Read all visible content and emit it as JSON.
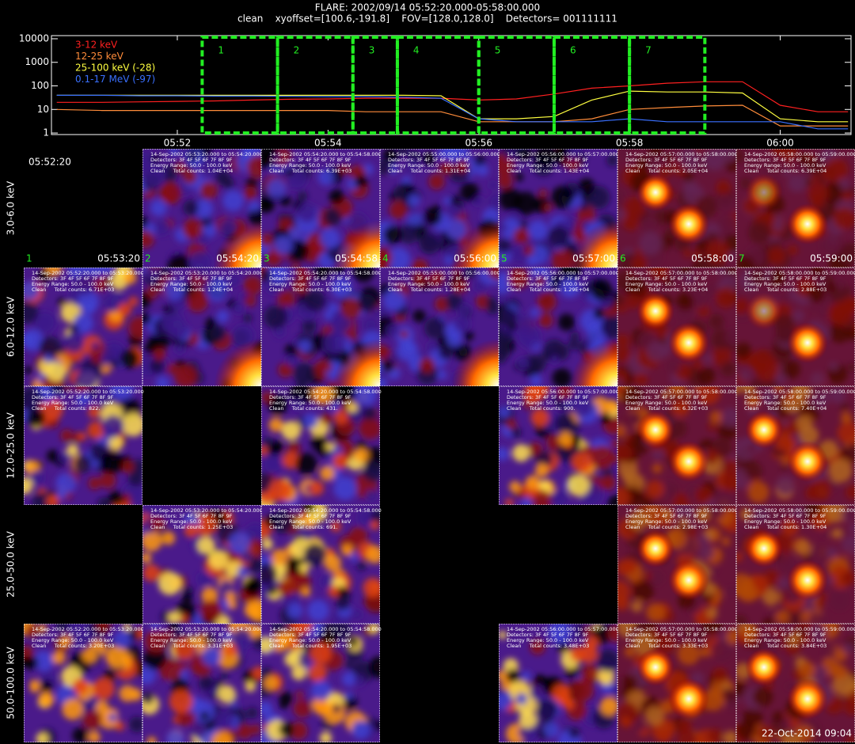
{
  "header": {
    "title": "FLARE: 2002/09/14 05:52:20.000-05:58:00.000",
    "subtitle": "clean    xyoffset=[100.6,-191.8]    FOV=[128.0,128.0]    Detectors= 001111111"
  },
  "chart_data": {
    "type": "line",
    "log_y": true,
    "xlim": [
      50.33,
      60.94
    ],
    "ylim": [
      0.86,
      13600
    ],
    "xticks": [
      {
        "value": 52,
        "label": "05:52"
      },
      {
        "value": 54,
        "label": "05:54"
      },
      {
        "value": 56,
        "label": "05:56"
      },
      {
        "value": 58,
        "label": "05:58"
      },
      {
        "value": 60,
        "label": "06:00"
      }
    ],
    "yticks": [
      1,
      10,
      100,
      1000,
      10000
    ],
    "x": [
      50.4,
      51,
      51.5,
      52,
      52.5,
      53,
      53.5,
      54,
      54.5,
      55,
      55.5,
      56,
      56.5,
      57,
      57.5,
      58,
      58.5,
      59,
      59.5,
      60,
      60.5,
      60.9
    ],
    "series": [
      {
        "name": "3-12 keV",
        "color": "#ff2020",
        "values": [
          20,
          20,
          21,
          22,
          23,
          25,
          27,
          28,
          30,
          30,
          30,
          25,
          28,
          45,
          80,
          100,
          130,
          150,
          150,
          15,
          8,
          8
        ]
      },
      {
        "name": "12-25 keV",
        "color": "#ff8c3a",
        "values": [
          10,
          9,
          9,
          9,
          9,
          9,
          9,
          9,
          8,
          8,
          8,
          3,
          3,
          3,
          4,
          10,
          12,
          14,
          15,
          2,
          2,
          2
        ]
      },
      {
        "name": "25-100 keV (-28)",
        "color": "#ffff40",
        "values": [
          40,
          40,
          40,
          40,
          40,
          40,
          40,
          40,
          40,
          40,
          38,
          4,
          4,
          5,
          25,
          60,
          55,
          55,
          50,
          4,
          3,
          3
        ]
      },
      {
        "name": "0.1-17 MeV (-97)",
        "color": "#3a70ff",
        "values": [
          40,
          40,
          38,
          38,
          37,
          37,
          36,
          35,
          35,
          33,
          30,
          4,
          3,
          3,
          3,
          4,
          3,
          3,
          3,
          3,
          1.5,
          1.5
        ]
      }
    ],
    "intervals": [
      {
        "label": "1",
        "start": 52.33,
        "end": 53.33
      },
      {
        "label": "2",
        "start": 53.33,
        "end": 54.33
      },
      {
        "label": "3",
        "start": 54.33,
        "end": 54.92
      },
      {
        "label": "4",
        "start": 54.92,
        "end": 56
      },
      {
        "label": "5",
        "start": 56,
        "end": 57
      },
      {
        "label": "6",
        "start": 57,
        "end": 58
      },
      {
        "label": "7",
        "start": 58,
        "end": 59
      }
    ]
  },
  "start_time": "05:52:20",
  "columns": [
    {
      "number": "1",
      "end": "05:53:20"
    },
    {
      "number": "2",
      "end": "05:54:20"
    },
    {
      "number": "3",
      "end": "05:54:58"
    },
    {
      "number": "4",
      "end": "05:56:00"
    },
    {
      "number": "5",
      "end": "05:57:00"
    },
    {
      "number": "6",
      "end": "05:58:00"
    },
    {
      "number": "7",
      "end": "05:59:00"
    }
  ],
  "rows": [
    {
      "label": "3.0-6.0 keV",
      "cells": [
        null,
        {
          "time": "14-Sep-2002 05:53:20.000 to 05:54:20.000",
          "detectors": "Detectors: 3F 4F 5F 6F 7F 8F 9F",
          "energy": "Energy Range: 50.0 - 100.0 keV",
          "counts": "Clean     Total counts: 1.04E+04"
        },
        {
          "time": "14-Sep-2002 05:54:20.000 to 05:54:58.000",
          "detectors": "Detectors: 3F 4F 5F 6F 7F 8F 9F",
          "energy": "Energy Range: 50.0 - 100.0 keV",
          "counts": "Clean     Total counts: 6.39E+03"
        },
        {
          "time": "14-Sep-2002 05:55:00.000 to 05:56:00.000",
          "detectors": "Detectors: 3F 4F 5F 6F 7F 8F 9F",
          "energy": "Energy Range: 50.0 - 100.0 keV",
          "counts": "Clean     Total counts: 1.31E+04"
        },
        {
          "time": "14-Sep-2002 05:56:00.000 to 05:57:00.000",
          "detectors": "Detectors: 3F 4F 5F 6F 7F 8F 9F",
          "energy": "Energy Range: 50.0 - 100.0 keV",
          "counts": "Clean     Total counts: 1.43E+04"
        },
        {
          "time": "14-Sep-2002 05:57:00.000 to 05:58:00.000",
          "detectors": "Detectors: 3F 4F 5F 6F 7F 8F 9F",
          "energy": "Energy Range: 50.0 - 100.0 keV",
          "counts": "Clean     Total counts: 2.05E+04"
        },
        {
          "time": "14-Sep-2002 05:58:00.000 to 05:59:00.000",
          "detectors": "Detectors: 3F 4F 5F 6F 7F 8F 9F",
          "energy": "Energy Range: 50.0 - 100.0 keV",
          "counts": "Clean     Total counts: 6.39E+04"
        }
      ]
    },
    {
      "label": "6.0-12.0 keV",
      "cells": [
        {
          "time": "14-Sep-2002 05:52:20.000 to 05:53:20.000",
          "detectors": "Detectors: 3F 4F 5F 6F 7F 8F 9F",
          "energy": "Energy Range: 50.0 - 100.0 keV",
          "counts": "Clean     Total counts: 6.71E+03"
        },
        {
          "time": "14-Sep-2002 05:53:20.000 to 05:54:20.000",
          "detectors": "Detectors: 3F 4F 5F 6F 7F 8F 9F",
          "energy": "Energy Range: 50.0 - 100.0 keV",
          "counts": "Clean     Total counts: 1.24E+04"
        },
        {
          "time": "14-Sep-2002 05:54:20.000 to 05:54:58.000",
          "detectors": "Detectors: 3F 4F 5F 6F 7F 8F 9F",
          "energy": "Energy Range: 50.0 - 100.0 keV",
          "counts": "Clean     Total counts: 6.30E+03"
        },
        {
          "time": "14-Sep-2002 05:55:00.000 to 05:56:00.000",
          "detectors": "Detectors: 3F 4F 5F 6F 7F 8F 9F",
          "energy": "Energy Range: 50.0 - 100.0 keV",
          "counts": "Clean     Total counts: 1.28E+04"
        },
        {
          "time": "14-Sep-2002 05:56:00.000 to 05:57:00.000",
          "detectors": "Detectors: 3F 4F 5F 6F 7F 8F 9F",
          "energy": "Energy Range: 50.0 - 100.0 keV",
          "counts": "Clean     Total counts: 1.29E+04"
        },
        {
          "time": "14-Sep-2002 05:57:00.000 to 05:58:00.000",
          "detectors": "Detectors: 3F 4F 5F 6F 7F 8F 9F",
          "energy": "Energy Range: 50.0 - 100.0 keV",
          "counts": "Clean     Total counts: 3.23E+04"
        },
        {
          "time": "14-Sep-2002 05:58:00.000 to 05:59:00.000",
          "detectors": "Detectors: 3F 4F 5F 6F 7F 8F 9F",
          "energy": "Energy Range: 50.0 - 100.0 keV",
          "counts": "Clean     Total counts: 2.88E+03"
        }
      ]
    },
    {
      "label": "12.0-25.0 keV",
      "cells": [
        {
          "time": "14-Sep-2002 05:52:20.000 to 05:53:20.000",
          "detectors": "Detectors: 3F 4F 5F 6F 7F 8F 9F",
          "energy": "Energy Range: 50.0 - 100.0 keV",
          "counts": "Clean     Total counts: 822."
        },
        null,
        {
          "time": "14-Sep-2002 05:54:20.000 to 05:54:58.000",
          "detectors": "Detectors: 3F 4F 5F 6F 7F 8F 9F",
          "energy": "Energy Range: 50.0 - 100.0 keV",
          "counts": "Clean     Total counts: 431."
        },
        null,
        {
          "time": "14-Sep-2002 05:56:00.000 to 05:57:00.000",
          "detectors": "Detectors: 3F 4F 5F 6F 7F 8F 9F",
          "energy": "Energy Range: 50.0 - 100.0 keV",
          "counts": "Clean     Total counts: 900."
        },
        {
          "time": "14-Sep-2002 05:57:00.000 to 05:58:00.000",
          "detectors": "Detectors: 3F 4F 5F 6F 7F 8F 9F",
          "energy": "Energy Range: 50.0 - 100.0 keV",
          "counts": "Clean     Total counts: 6.32E+03"
        },
        {
          "time": "14-Sep-2002 05:58:00.000 to 05:59:00.000",
          "detectors": "Detectors: 3F 4F 5F 6F 7F 8F 9F",
          "energy": "Energy Range: 50.0 - 100.0 keV",
          "counts": "Clean     Total counts: 7.40E+04"
        }
      ]
    },
    {
      "label": "25.0-50.0 keV",
      "cells": [
        null,
        {
          "time": "14-Sep-2002 05:53:20.000 to 05:54:20.000",
          "detectors": "Detectors: 3F 4F 5F 6F 7F 8F 9F",
          "energy": "Energy Range: 50.0 - 100.0 keV",
          "counts": "Clean     Total counts: 1.25E+03"
        },
        {
          "time": "14-Sep-2002 05:54:20.000 to 05:54:58.000",
          "detectors": "Detectors: 3F 4F 5F 6F 7F 8F 9F",
          "energy": "Energy Range: 50.0 - 100.0 keV",
          "counts": "Clean     Total counts: 691."
        },
        null,
        null,
        {
          "time": "14-Sep-2002 05:57:00.000 to 05:58:00.000",
          "detectors": "Detectors: 3F 4F 5F 6F 7F 8F 9F",
          "energy": "Energy Range: 50.0 - 100.0 keV",
          "counts": "Clean     Total counts: 2.98E+03"
        },
        {
          "time": "14-Sep-2002 05:58:00.000 to 05:59:00.000",
          "detectors": "Detectors: 3F 4F 5F 6F 7F 8F 9F",
          "energy": "Energy Range: 50.0 - 100.0 keV",
          "counts": "Clean     Total counts: 1.30E+04"
        }
      ]
    },
    {
      "label": "50.0-100.0 keV",
      "cells": [
        {
          "time": "14-Sep-2002 05:52:20.000 to 05:53:20.000",
          "detectors": "Detectors: 3F 4F 5F 6F 7F 8F 9F",
          "energy": "Energy Range: 50.0 - 100.0 keV",
          "counts": "Clean     Total counts: 3.20E+03"
        },
        {
          "time": "14-Sep-2002 05:53:20.000 to 05:54:20.000",
          "detectors": "Detectors: 3F 4F 5F 6F 7F 8F 9F",
          "energy": "Energy Range: 50.0 - 100.0 keV",
          "counts": "Clean     Total counts: 3.31E+03"
        },
        {
          "time": "14-Sep-2002 05:54:20.000 to 05:54:58.000",
          "detectors": "Detectors: 3F 4F 5F 6F 7F 8F 9F",
          "energy": "Energy Range: 50.0 - 100.0 keV",
          "counts": "Clean     Total counts: 1.95E+03"
        },
        null,
        {
          "time": "14-Sep-2002 05:56:00.000 to 05:57:00.000",
          "detectors": "Detectors: 3F 4F 5F 6F 7F 8F 9F",
          "energy": "Energy Range: 50.0 - 100.0 keV",
          "counts": "Clean     Total counts: 3.48E+03"
        },
        {
          "time": "14-Sep-2002 05:57:00.000 to 05:58:00.000",
          "detectors": "Detectors: 3F 4F 5F 6F 7F 8F 9F",
          "energy": "Energy Range: 50.0 - 100.0 keV",
          "counts": "Clean     Total counts: 3.33E+03"
        },
        {
          "time": "14-Sep-2002 05:58:00.000 to 05:59:00.000",
          "detectors": "Detectors: 3F 4F 5F 6F 7F 8F 9F",
          "energy": "Energy Range: 50.0 - 100.0 keV",
          "counts": "Clean     Total counts: 3.84E+03"
        }
      ]
    }
  ],
  "footer": "22-Oct-2014 09:04"
}
